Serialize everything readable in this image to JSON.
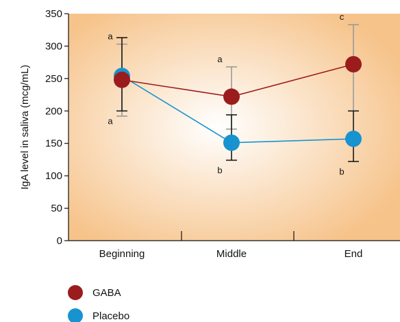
{
  "chart_data": {
    "type": "line",
    "ylabel": "IgA level in saliva (mcg/mL)",
    "xlabel": "",
    "categories": [
      "Beginning",
      "Middle",
      "End"
    ],
    "ylim": [
      0,
      350
    ],
    "yticks": [
      0,
      50,
      100,
      150,
      200,
      250,
      300,
      350
    ],
    "grid": false,
    "legend_position": "bottom-left",
    "background": {
      "center": "#ffffff",
      "edge": "#f6c38a"
    },
    "series": [
      {
        "name": "GABA",
        "color": "#9b1c1c",
        "values": [
          248,
          222,
          272
        ],
        "error_high": [
          303,
          268,
          333
        ],
        "error_low": [
          192,
          172,
          200
        ],
        "error_color": "#9a9a9a",
        "sig_letters": [
          "a",
          "a",
          "c"
        ],
        "sig_positions": [
          "above",
          "above",
          "above"
        ]
      },
      {
        "name": "Placebo",
        "color": "#1793cf",
        "values": [
          254,
          151,
          157
        ],
        "error_high": [
          313,
          194,
          200
        ],
        "error_low": [
          200,
          124,
          122
        ],
        "error_color": "#1a1a1a",
        "sig_letters": [
          "a",
          "b",
          "b"
        ],
        "sig_positions": [
          "below",
          "below",
          "below"
        ]
      }
    ]
  }
}
